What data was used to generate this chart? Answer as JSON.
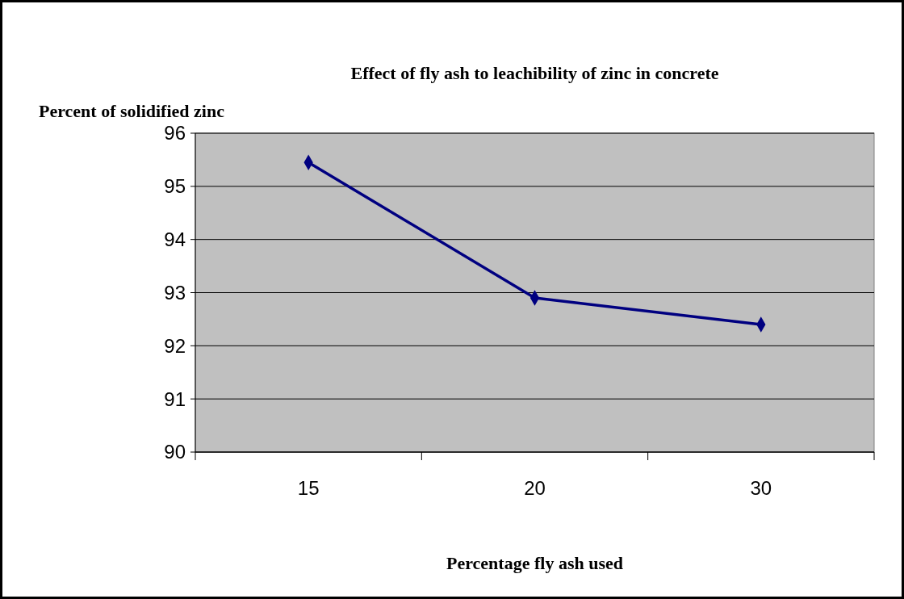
{
  "chart_data": {
    "type": "line",
    "title": "Effect of fly ash to leachibility of zinc in concrete",
    "xlabel": "Percentage fly ash used",
    "ylabel": "Percent of solidified zinc",
    "categories": [
      "15",
      "20",
      "30"
    ],
    "series": [
      {
        "color": "#000080",
        "values": [
          95.45,
          92.9,
          92.4
        ]
      }
    ],
    "ylim": [
      90,
      96
    ],
    "yticks": [
      90,
      91,
      92,
      93,
      94,
      95,
      96
    ],
    "grid": "y",
    "marker": "diamond"
  }
}
